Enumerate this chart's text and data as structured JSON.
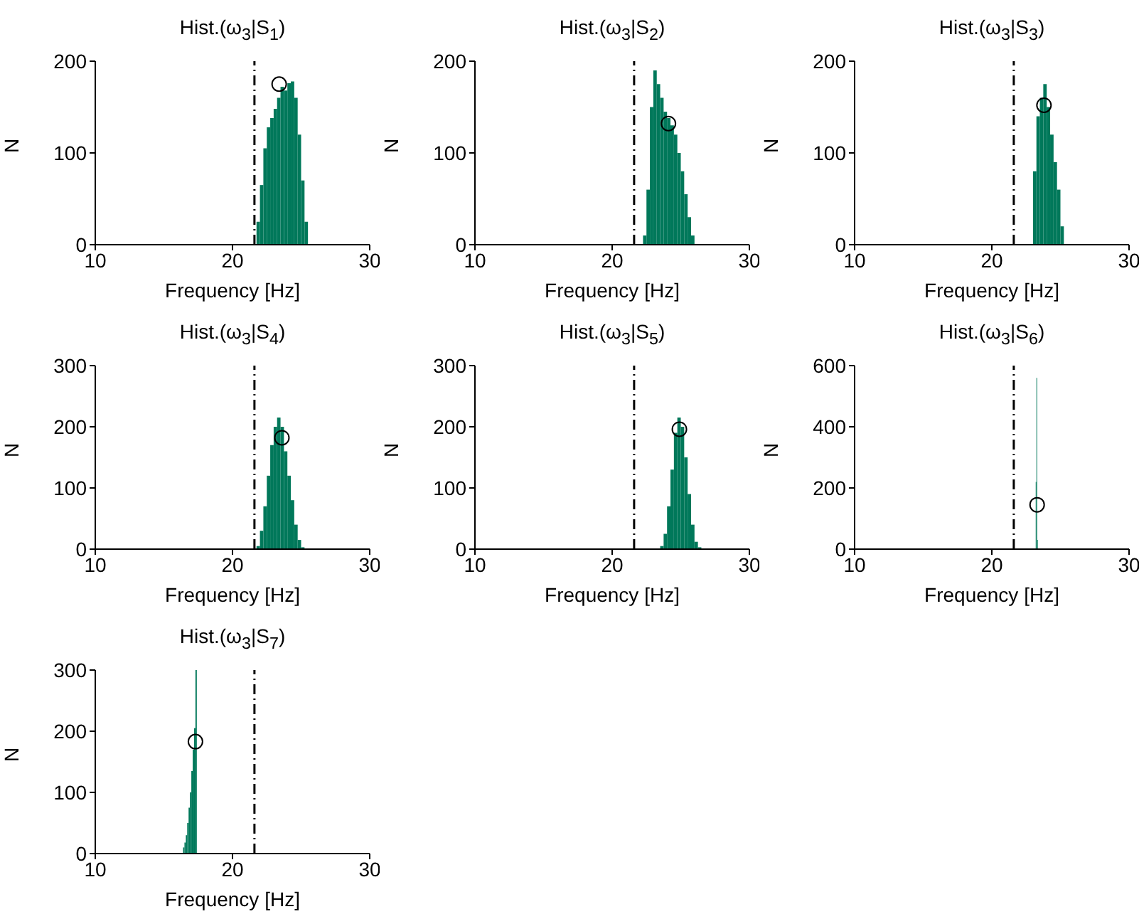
{
  "chart_data": [
    {
      "type": "histogram",
      "title": "Hist.(ω$_{3}$|S$_{1}$)",
      "xlabel": "Frequency [Hz]",
      "ylabel": "N",
      "xlim": [
        10,
        30
      ],
      "xticks": [
        10,
        20,
        30
      ],
      "ylim": [
        0,
        200
      ],
      "yticks": [
        0,
        100,
        200
      ],
      "series": [
        {
          "color": "#00785a",
          "bins": [
            21.75,
            22,
            22.25,
            22.5,
            22.75,
            23,
            23.25,
            23.5,
            23.75,
            24,
            24.25,
            24.5,
            24.75,
            25,
            25.25,
            25.5
          ],
          "values": [
            25,
            65,
            105,
            128,
            138,
            148,
            160,
            172,
            168,
            176,
            178,
            160,
            120,
            70,
            25
          ]
        },
        {
          "type": "scatter",
          "color": "#000000",
          "marker": "circle",
          "x": [
            23.4
          ],
          "values": [
            175
          ]
        }
      ],
      "ref_lines": [
        {
          "axis": "x",
          "value": 21.6,
          "color": "#000000",
          "line_style": "dashdot"
        }
      ]
    },
    {
      "type": "histogram",
      "title": "Hist.(ω$_{3}$|S$_{2}$)",
      "xlabel": "Frequency [Hz]",
      "ylabel": "N",
      "xlim": [
        10,
        30
      ],
      "xticks": [
        10,
        20,
        30
      ],
      "ylim": [
        0,
        200
      ],
      "yticks": [
        0,
        100,
        200
      ],
      "series": [
        {
          "color": "#00785a",
          "bins": [
            22.25,
            22.5,
            22.75,
            23,
            23.25,
            23.5,
            23.75,
            24,
            24.25,
            24.5,
            24.75,
            25,
            25.25,
            25.5,
            25.75,
            26
          ],
          "values": [
            10,
            60,
            150,
            190,
            175,
            160,
            145,
            138,
            130,
            120,
            100,
            80,
            55,
            30,
            10
          ]
        },
        {
          "type": "scatter",
          "color": "#000000",
          "marker": "circle",
          "x": [
            24.1
          ],
          "values": [
            132
          ]
        }
      ],
      "ref_lines": [
        {
          "axis": "x",
          "value": 21.6,
          "color": "#000000",
          "line_style": "dashdot"
        }
      ]
    },
    {
      "type": "histogram",
      "title": "Hist.(ω$_{3}$|S$_{3}$)",
      "xlabel": "Frequency [Hz]",
      "ylabel": "N",
      "xlim": [
        10,
        30
      ],
      "xticks": [
        10,
        20,
        30
      ],
      "ylim": [
        0,
        200
      ],
      "yticks": [
        0,
        100,
        200
      ],
      "series": [
        {
          "color": "#00785a",
          "bins": [
            23,
            23.25,
            23.5,
            23.75,
            24,
            24.25,
            24.5,
            24.75,
            25,
            25.25
          ],
          "values": [
            80,
            140,
            160,
            175,
            150,
            120,
            90,
            60,
            20
          ]
        },
        {
          "type": "scatter",
          "color": "#000000",
          "marker": "circle",
          "x": [
            23.8
          ],
          "values": [
            152
          ]
        }
      ],
      "ref_lines": [
        {
          "axis": "x",
          "value": 21.6,
          "color": "#000000",
          "line_style": "dashdot"
        }
      ]
    },
    {
      "type": "histogram",
      "title": "Hist.(ω$_{3}$|S$_{4}$)",
      "xlabel": "Frequency [Hz]",
      "ylabel": "N",
      "xlim": [
        10,
        30
      ],
      "xticks": [
        10,
        20,
        30
      ],
      "ylim": [
        0,
        300
      ],
      "yticks": [
        0,
        100,
        200,
        300
      ],
      "series": [
        {
          "color": "#00785a",
          "bins": [
            21.75,
            22,
            22.25,
            22.5,
            22.75,
            23,
            23.25,
            23.5,
            23.75,
            24,
            24.25,
            24.5,
            24.75,
            25,
            25.25
          ],
          "values": [
            5,
            30,
            70,
            120,
            170,
            200,
            215,
            200,
            160,
            120,
            80,
            40,
            15,
            3
          ]
        },
        {
          "type": "scatter",
          "color": "#000000",
          "marker": "circle",
          "x": [
            23.6
          ],
          "values": [
            182
          ]
        }
      ],
      "ref_lines": [
        {
          "axis": "x",
          "value": 21.6,
          "color": "#000000",
          "line_style": "dashdot"
        }
      ]
    },
    {
      "type": "histogram",
      "title": "Hist.(ω$_{3}$|S$_{5}$)",
      "xlabel": "Frequency [Hz]",
      "ylabel": "N",
      "xlim": [
        10,
        30
      ],
      "xticks": [
        10,
        20,
        30
      ],
      "ylim": [
        0,
        300
      ],
      "yticks": [
        0,
        100,
        200,
        300
      ],
      "series": [
        {
          "color": "#00785a",
          "bins": [
            23.5,
            23.75,
            24,
            24.25,
            24.5,
            24.75,
            25,
            25.25,
            25.5,
            25.75,
            26,
            26.25,
            26.5
          ],
          "values": [
            5,
            25,
            70,
            130,
            190,
            215,
            200,
            150,
            90,
            40,
            12,
            3
          ]
        },
        {
          "type": "scatter",
          "color": "#000000",
          "marker": "circle",
          "x": [
            24.9
          ],
          "values": [
            196
          ]
        }
      ],
      "ref_lines": [
        {
          "axis": "x",
          "value": 21.6,
          "color": "#000000",
          "line_style": "dashdot"
        }
      ]
    },
    {
      "type": "histogram",
      "title": "Hist.(ω$_{3}$|S$_{6}$)",
      "xlabel": "Frequency [Hz]",
      "ylabel": "N",
      "xlim": [
        10,
        30
      ],
      "xticks": [
        10,
        20,
        30
      ],
      "ylim": [
        0,
        600
      ],
      "yticks": [
        0,
        200,
        400,
        600
      ],
      "series": [
        {
          "color": "#00785a",
          "bins": [
            23.2,
            23.25,
            23.3,
            23.35
          ],
          "values": [
            220,
            560,
            30
          ]
        },
        {
          "type": "scatter",
          "color": "#000000",
          "marker": "circle",
          "x": [
            23.3
          ],
          "values": [
            145
          ]
        }
      ],
      "ref_lines": [
        {
          "axis": "x",
          "value": 21.6,
          "color": "#000000",
          "line_style": "dashdot"
        }
      ]
    },
    {
      "type": "histogram",
      "title": "Hist.(ω$_{3}$|S$_{7}$)",
      "xlabel": "Frequency [Hz]",
      "ylabel": "N",
      "xlim": [
        10,
        30
      ],
      "xticks": [
        10,
        20,
        30
      ],
      "ylim": [
        0,
        300
      ],
      "yticks": [
        0,
        100,
        200,
        300
      ],
      "series": [
        {
          "color": "#00785a",
          "bins": [
            16.4,
            16.5,
            16.6,
            16.7,
            16.8,
            16.9,
            17,
            17.1,
            17.2,
            17.3,
            17.4
          ],
          "values": [
            10,
            18,
            30,
            50,
            75,
            100,
            135,
            170,
            205,
            300
          ]
        },
        {
          "type": "scatter",
          "color": "#000000",
          "marker": "circle",
          "x": [
            17.3
          ],
          "values": [
            183
          ]
        }
      ],
      "ref_lines": [
        {
          "axis": "x",
          "value": 21.6,
          "color": "#000000",
          "line_style": "dashdot"
        }
      ]
    }
  ]
}
